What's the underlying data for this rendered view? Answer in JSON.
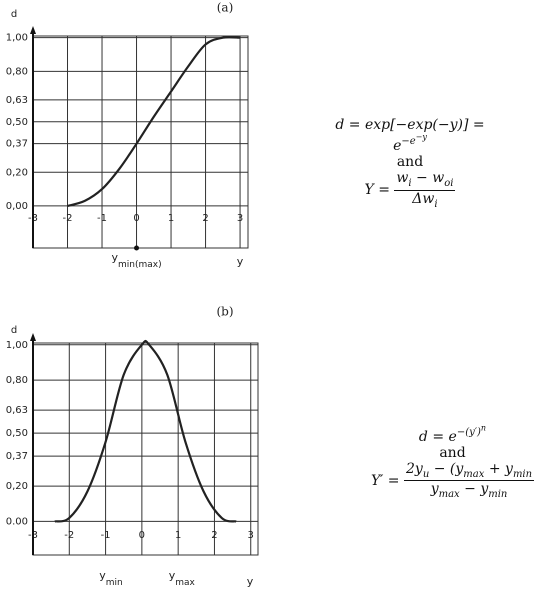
{
  "chart_data": [
    {
      "type": "line",
      "title": "(a)",
      "y_label": "d",
      "x_label": "y",
      "annotations": [
        [
          "y",
          "min(max)"
        ]
      ],
      "x": [
        -2,
        -1.5,
        -1,
        -0.5,
        0,
        0.5,
        1,
        1.5,
        2,
        2.5,
        3
      ],
      "values": [
        0,
        0.03,
        0.1,
        0.22,
        0.37,
        0.53,
        0.68,
        0.83,
        0.96,
        1.0,
        1.0
      ],
      "color": "#222222",
      "xlim": [
        -3,
        3.23
      ],
      "ylim": [
        -0.25,
        1.01
      ],
      "xticks": [
        -3,
        -2,
        -1,
        0,
        1,
        2,
        3
      ],
      "yticks": [
        {
          "value": 0,
          "label": "0,00"
        },
        {
          "value": 0.2,
          "label": "0,20"
        },
        {
          "value": 0.37,
          "label": "0,37"
        },
        {
          "value": 0.5,
          "label": "0,50"
        },
        {
          "value": 0.63,
          "label": "0,63"
        },
        {
          "value": 0.8,
          "label": "0,80"
        },
        {
          "value": 1,
          "label": "1,00"
        }
      ],
      "grid": true
    },
    {
      "type": "line",
      "title": "(b)",
      "y_label": "d",
      "x_label": "y",
      "annotations": [
        [
          "y",
          "min"
        ],
        [
          "y",
          "max"
        ]
      ],
      "x": [
        -2.4,
        -2,
        -1.5,
        -1,
        -0.5,
        0,
        0.2,
        0.7,
        1.2,
        1.7,
        2.2,
        2.6
      ],
      "values": [
        0,
        0.02,
        0.17,
        0.45,
        0.83,
        1.0,
        1.0,
        0.83,
        0.45,
        0.17,
        0.02,
        0
      ],
      "color": "#222222",
      "xlim": [
        -3,
        3.2
      ],
      "ylim": [
        -0.19,
        1.01
      ],
      "xticks": [
        -3,
        -2,
        -1,
        0,
        1,
        2,
        3
      ],
      "yticks": [
        {
          "value": 0,
          "label": "0.00"
        },
        {
          "value": 0.2,
          "label": "0,20"
        },
        {
          "value": 0.37,
          "label": "0,37"
        },
        {
          "value": 0.5,
          "label": "0,50"
        },
        {
          "value": 0.63,
          "label": "0,63"
        },
        {
          "value": 0.8,
          "label": "0,80"
        },
        {
          "value": 1,
          "label": "1,00"
        }
      ],
      "grid": true
    }
  ],
  "equations": [
    {
      "line1": [
        "d = exp[−exp(−y)] = e",
        "−e",
        "−y"
      ],
      "conj": "and",
      "lhs": "Y =",
      "numerator": [
        "w",
        "i",
        " − w",
        "oi"
      ],
      "denominator": [
        "Δw",
        "i"
      ]
    },
    {
      "line1": [
        "d = e",
        "−(y′)",
        "n"
      ],
      "conj": "and",
      "lhs": "Y′ =",
      "numerator": [
        "2y",
        "u",
        " − (y",
        "max",
        " + y",
        "min"
      ],
      "denominator": [
        "y",
        "max",
        " − y",
        "min"
      ]
    }
  ]
}
